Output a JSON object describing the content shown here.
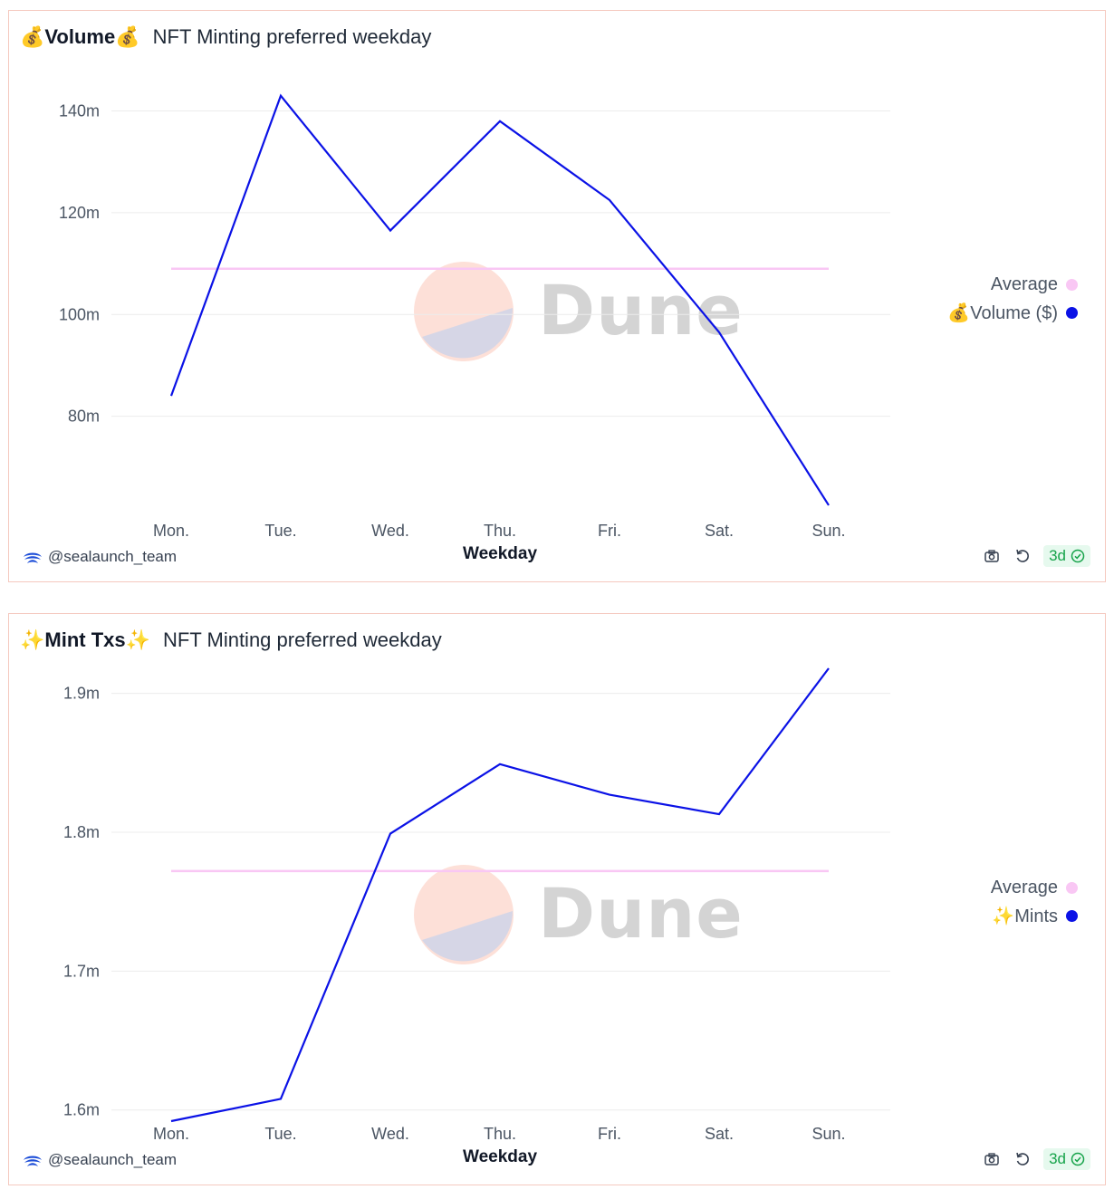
{
  "footer": {
    "author": "@sealaunch_team",
    "freshness": "3d",
    "watermark": "Dune"
  },
  "colors": {
    "series": "#0b12e6",
    "average": "#f9c7f4",
    "grid": "#ececec",
    "badge": "#16a34a"
  },
  "icons": [
    "dune-logo-icon",
    "camera-icon",
    "refresh-icon",
    "check-circle-icon"
  ],
  "chart_data": [
    {
      "type": "line",
      "query_name": "💰Volume💰",
      "title": "NFT Minting preferred weekday",
      "xlabel": "Weekday",
      "ylabel": "",
      "categories": [
        "Mon.",
        "Tue.",
        "Wed.",
        "Thu.",
        "Fri.",
        "Sat.",
        "Sun."
      ],
      "yticks": [
        "80m",
        "100m",
        "120m",
        "140m"
      ],
      "ytick_values": [
        80000000,
        100000000,
        120000000,
        140000000
      ],
      "ylim": [
        60000000,
        149000000
      ],
      "grid": true,
      "legend_position": "right",
      "series": [
        {
          "name": "Average",
          "role": "average",
          "values": [
            109000000,
            109000000,
            109000000,
            109000000,
            109000000,
            109000000,
            109000000
          ]
        },
        {
          "name": "💰Volume ($)",
          "role": "main",
          "values": [
            84000000,
            143000000,
            116500000,
            138000000,
            122500000,
            96500000,
            62500000
          ]
        }
      ]
    },
    {
      "type": "line",
      "query_name": "✨Mint Txs✨",
      "title": "NFT Minting preferred weekday",
      "xlabel": "Weekday",
      "ylabel": "",
      "categories": [
        "Mon.",
        "Tue.",
        "Wed.",
        "Thu.",
        "Fri.",
        "Sat.",
        "Sun."
      ],
      "yticks": [
        "1.6m",
        "1.7m",
        "1.8m",
        "1.9m"
      ],
      "ytick_values": [
        1600000,
        1700000,
        1800000,
        1900000
      ],
      "ylim": [
        1592000,
        1918000
      ],
      "grid": true,
      "legend_position": "right",
      "series": [
        {
          "name": "Average",
          "role": "average",
          "values": [
            1772000,
            1772000,
            1772000,
            1772000,
            1772000,
            1772000,
            1772000
          ]
        },
        {
          "name": "✨Mints",
          "role": "main",
          "values": [
            1592000,
            1608000,
            1799000,
            1849000,
            1827000,
            1813000,
            1918000
          ]
        }
      ]
    }
  ]
}
